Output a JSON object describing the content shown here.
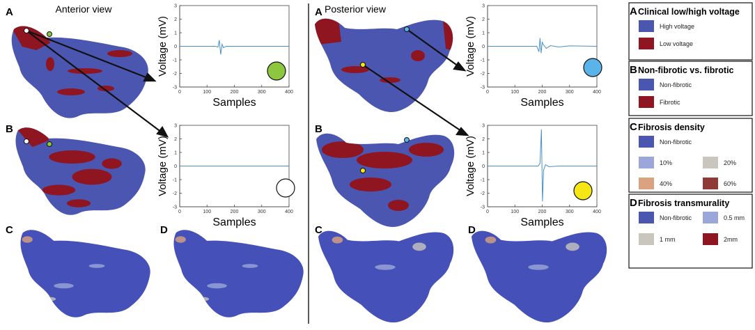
{
  "figure": {
    "anterior": {
      "title": "Anterior view",
      "labels": [
        "A",
        "B",
        "C",
        "D"
      ]
    },
    "posterior": {
      "title": "Posterior view",
      "labels": [
        "A",
        "B",
        "C",
        "D"
      ]
    },
    "plots": [
      {
        "ylabel": "Voltage (mV)",
        "xlabel": "Samples",
        "xlim": [
          0,
          400
        ],
        "ylim": [
          -3,
          3
        ],
        "xticks": [
          0,
          100,
          200,
          300,
          400
        ],
        "yticks": [
          3,
          2,
          1,
          0,
          -1,
          -2,
          -3
        ],
        "line_color": "#4a8fc4",
        "marker_color": "#8dc63f",
        "x": [
          0,
          130,
          140,
          145,
          150,
          155,
          160,
          170,
          200,
          400
        ],
        "y": [
          0,
          0,
          -0.05,
          0.45,
          -0.6,
          0.15,
          -0.1,
          0,
          0,
          0
        ]
      },
      {
        "ylabel": "Voltage (mV)",
        "xlabel": "Samples",
        "xlim": [
          0,
          400
        ],
        "ylim": [
          -3,
          3
        ],
        "xticks": [
          0,
          100,
          200,
          300,
          400
        ],
        "yticks": [
          3,
          2,
          1,
          0,
          -1,
          -2,
          -3
        ],
        "line_color": "#4a8fc4",
        "marker_color": "#ffffff",
        "x": [
          0,
          100,
          200,
          300,
          400
        ],
        "y": [
          0,
          0,
          0,
          0,
          0
        ]
      },
      {
        "ylabel": "Voltage (mV)",
        "xlabel": "Samples",
        "xlim": [
          0,
          400
        ],
        "ylim": [
          -3,
          3
        ],
        "xticks": [
          0,
          100,
          200,
          300,
          400
        ],
        "yticks": [
          3,
          2,
          1,
          0,
          -1,
          -2,
          -3
        ],
        "line_color": "#4a8fc4",
        "marker_color": "#5ab4ea",
        "x": [
          0,
          180,
          188,
          192,
          196,
          200,
          205,
          215,
          230,
          260,
          300,
          400
        ],
        "y": [
          0,
          0,
          -0.4,
          0.6,
          -0.5,
          0.3,
          0.1,
          -0.15,
          0.05,
          -0.05,
          0.03,
          0
        ]
      },
      {
        "ylabel": "Voltage (mV)",
        "xlabel": "Samples",
        "xlim": [
          0,
          400
        ],
        "ylim": [
          -3,
          3
        ],
        "xticks": [
          0,
          100,
          200,
          300,
          400
        ],
        "yticks": [
          3,
          2,
          1,
          0,
          -1,
          -2,
          -3
        ],
        "line_color": "#4a8fc4",
        "marker_color": "#f6e614",
        "x": [
          0,
          185,
          192,
          197,
          201,
          205,
          212,
          225,
          260,
          400
        ],
        "y": [
          0,
          0,
          0.2,
          2.7,
          -2.6,
          -0.3,
          0.1,
          -0.05,
          0,
          0
        ]
      }
    ],
    "legends": [
      {
        "letter": "A",
        "title": "Clinical low/high voltage",
        "items": [
          {
            "label": "High voltage",
            "color": "#4a56b0"
          },
          {
            "label": "Low voltage",
            "color": "#8f1520"
          }
        ]
      },
      {
        "letter": "B",
        "title": "Non-fibrotic vs. fibrotic",
        "items": [
          {
            "label": "Non-fibrotic",
            "color": "#4a56b0"
          },
          {
            "label": "Fibrotic",
            "color": "#8f1520"
          }
        ]
      },
      {
        "letter": "C",
        "title": "Fibrosis density",
        "items": [
          {
            "label": "Non-fibrotic",
            "color": "#4a56b0"
          },
          {
            "label": "10%",
            "color": "#9aa7d8"
          },
          {
            "label": "20%",
            "color": "#c9c6bd"
          },
          {
            "label": "40%",
            "color": "#d9a37f"
          },
          {
            "label": "60%",
            "color": "#8f3a36"
          }
        ]
      },
      {
        "letter": "D",
        "title": "Fibrosis transmurality",
        "items": [
          {
            "label": "Non-fibrotic",
            "color": "#4a56b0"
          },
          {
            "label": "0.5 mm",
            "color": "#9aa7d8"
          },
          {
            "label": "1 mm",
            "color": "#c9c6bd"
          },
          {
            "label": "2mm",
            "color": "#8f1520"
          }
        ]
      }
    ]
  }
}
